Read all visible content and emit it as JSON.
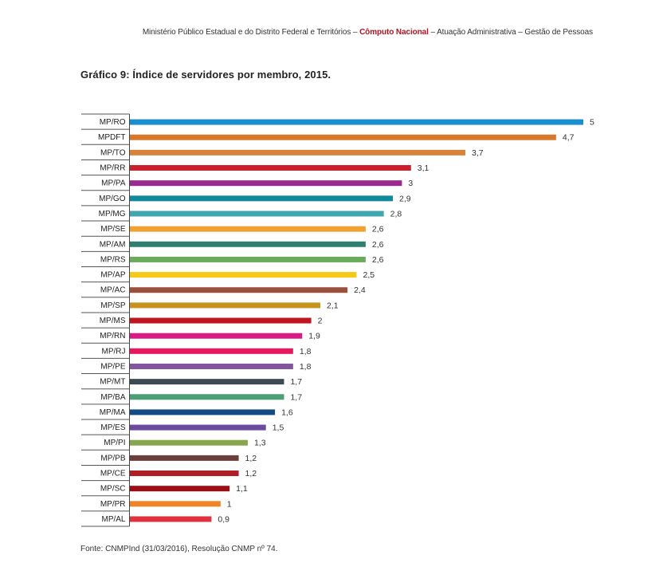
{
  "header": {
    "part1": "Ministério Público Estadual e do Distrito Federal e Territórios – ",
    "accent": "Cômputo Nacional",
    "part2": " – Atuação Administrativa – Gestão de Pessoas",
    "accent_color": "#b3121f"
  },
  "footer": "Fonte: CNMPInd (31/03/2016), Resolução CNMP nº 74.",
  "chart_data": {
    "type": "bar",
    "orientation": "horizontal",
    "title": "Gráfico 9: Índice de servidores por membro, 2015.",
    "xlabel": "",
    "ylabel": "",
    "xlim": [
      0,
      5
    ],
    "grid": false,
    "categories": [
      "MP/RO",
      "MPDFT",
      "MP/TO",
      "MP/RR",
      "MP/PA",
      "MP/GO",
      "MP/MG",
      "MP/SE",
      "MP/AM",
      "MP/RS",
      "MP/AP",
      "MP/AC",
      "MP/SP",
      "MP/MS",
      "MP/RN",
      "MP/RJ",
      "MP/PE",
      "MP/MT",
      "MP/BA",
      "MP/MA",
      "MP/ES",
      "MP/PI",
      "MP/PB",
      "MP/CE",
      "MP/SC",
      "MP/PR",
      "MP/AL"
    ],
    "values": [
      5,
      4.7,
      3.7,
      3.1,
      3,
      2.9,
      2.8,
      2.6,
      2.6,
      2.6,
      2.5,
      2.4,
      2.1,
      2,
      1.9,
      1.8,
      1.8,
      1.7,
      1.7,
      1.6,
      1.5,
      1.3,
      1.2,
      1.2,
      1.1,
      1,
      0.9
    ],
    "value_labels": [
      "5",
      "4,7",
      "3,7",
      "3,1",
      "3",
      "2,9",
      "2,8",
      "2,6",
      "2,6",
      "2,6",
      "2,5",
      "2,4",
      "2,1",
      "2",
      "1,9",
      "1,8",
      "1,8",
      "1,7",
      "1,7",
      "1,6",
      "1,5",
      "1,3",
      "1,2",
      "1,2",
      "1,1",
      "1",
      "0,9"
    ],
    "colors": [
      "#1a8fd0",
      "#d8782a",
      "#d9833a",
      "#c8202c",
      "#9b2a8e",
      "#108a9b",
      "#3fa7ad",
      "#f0a230",
      "#2f7f70",
      "#68ac5a",
      "#f7c817",
      "#9c4f3d",
      "#c8931c",
      "#c0141f",
      "#d81b84",
      "#e8175d",
      "#82559e",
      "#3c4a52",
      "#4c9e73",
      "#144b86",
      "#6b4a9f",
      "#88a64e",
      "#6a3e3a",
      "#b01d25",
      "#9b0e17",
      "#f08326",
      "#e0323c"
    ]
  }
}
